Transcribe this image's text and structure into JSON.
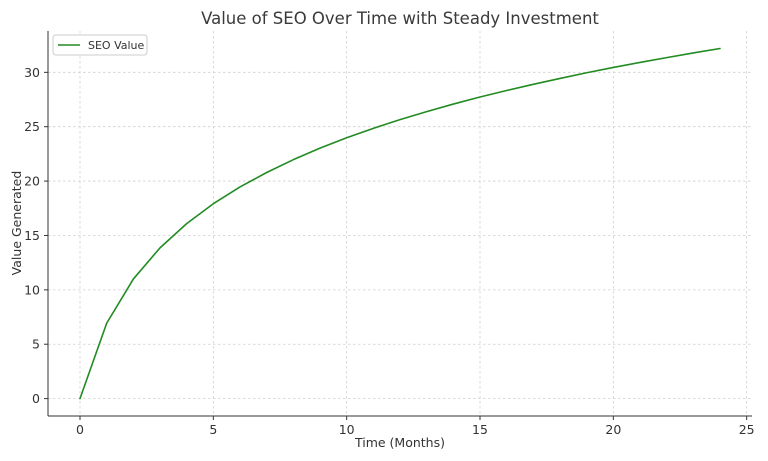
{
  "chart_data": {
    "type": "line",
    "title": "Value of SEO Over Time with Steady Investment",
    "xlabel": "Time (Months)",
    "ylabel": "Value Generated",
    "xlim": [
      -1.2,
      25.2
    ],
    "ylim": [
      -1.6,
      33.8
    ],
    "xticks": [
      0,
      5,
      10,
      15,
      20,
      25
    ],
    "yticks": [
      0,
      5,
      10,
      15,
      20,
      25,
      30
    ],
    "grid": true,
    "legend_position": "upper-left",
    "series": [
      {
        "name": "SEO Value",
        "color": "#228B22",
        "x": [
          0,
          1,
          2,
          3,
          4,
          5,
          6,
          7,
          8,
          9,
          10,
          11,
          12,
          13,
          14,
          15,
          16,
          17,
          18,
          19,
          20,
          21,
          22,
          23,
          24
        ],
        "y": [
          0,
          6.93,
          10.99,
          13.86,
          16.09,
          17.92,
          19.46,
          20.79,
          21.97,
          23.03,
          23.98,
          24.85,
          25.65,
          26.39,
          27.08,
          27.73,
          28.33,
          28.9,
          29.44,
          29.96,
          30.45,
          30.91,
          31.35,
          31.78,
          32.19
        ]
      }
    ]
  }
}
